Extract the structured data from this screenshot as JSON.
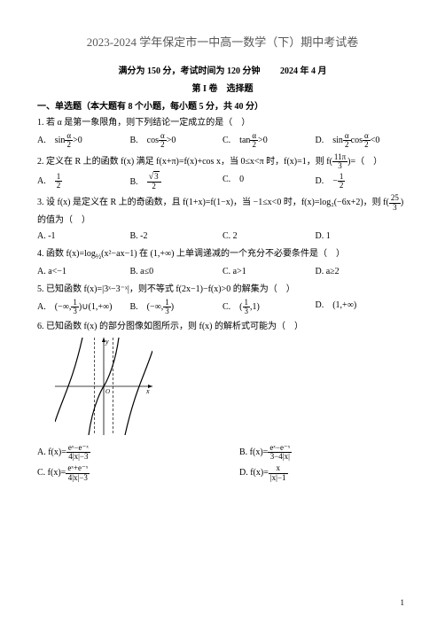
{
  "title": "2023-2024 学年保定市一中高一数学（下）期中考试卷",
  "sub_left": "满分为 150 分，考试时间为 120 分钟",
  "sub_right": "2024 年 4 月",
  "section": "第 I 卷　选择题",
  "heading": "一、单选题（本大题有 8 个小题，每小题 5 分，共 40 分）",
  "q1": "1. 若 α 是第一象限角，则下列结论一定成立的是（　）",
  "q1A": "A.　sin",
  "q1B": "B.　cos",
  "q1C": "C.　tan",
  "q1D": "D.　sin",
  "q1Dcos": "cos",
  "alpha": "α",
  "two": "2",
  "gt0": ">0",
  "lt0": "<0",
  "q2": "2. 定义在 R 上的函数 f(x) 满足 f(x+π)=f(x)+cos x，当 0≤x<π 时，f(x)=1，则 f",
  "q2tail": "=（　）",
  "elevenPi": "11π",
  "three": "3",
  "q2A": "A.　",
  "q2B": "B.　",
  "q2C": "C.　0",
  "q2D": "D.　−",
  "half_num": "1",
  "half_den": "2",
  "sqrt3": "3",
  "q3a": "3. 设 f(x) 是定义在 R 上的奇函数，且 f(1+x)=f(1−x)，当 −1≤x<0 时，f(x)=log₂(−6x+2)，则 f",
  "q3b": "的值为（　）",
  "twentyfive": "25",
  "q3A": "A. -1",
  "q3B": "B. -2",
  "q3C": "C. 2",
  "q3D": "D. 1",
  "q4": "4. 函数 f(x)=log",
  "q4sub": "½",
  "q4body": "(x²−ax−1) 在 (1,+∞) 上单调递减的一个充分不必要条件是（　）",
  "q4A": "A. a<−1",
  "q4B": "B. a≤0",
  "q4C": "C. a>1",
  "q4D": "D. a≥2",
  "q5": "5. 已知函数 f(x)=|3ˣ−3⁻ˣ|，则不等式 f(2x−1)−f(x)>0 的解集为（　）",
  "q5A_l": "A.　",
  "q5A_body": "−∞,",
  "q5A_union": "∪(1,+∞)",
  "q5B_l": "B.　",
  "q5B_body": "−∞,",
  "q5C_l": "C.　",
  "q5C_body": ",1",
  "q5D": "D.　(1,+∞)",
  "one": "1",
  "q6": "6. 已知函数 f(x) 的部分图像如图所示，则 f(x) 的解析式可能为（　）",
  "q6A": "A. f(x)=",
  "q6Anum": "eˣ−e⁻ˣ",
  "q6Aden": "4|x|−3",
  "q6B": "B. f(x)=",
  "q6Bnum": "eˣ−e⁻ˣ",
  "q6Bden": "3−4|x|",
  "q6C": "C. f(x)=",
  "q6Cnum": "eˣ+e⁻ˣ",
  "q6Cden": "4|x|−3",
  "q6D": "D. f(x)=",
  "q6Dnum": "x",
  "q6Dden": "|x|−1",
  "pagenum": "1",
  "graph": {
    "type": "function-plot",
    "width": 110,
    "height": 110,
    "bg": "#ffffff",
    "axis_color": "#000000",
    "curve_color": "#000000",
    "asymptote_color": "#000000",
    "x_range": [
      -4,
      4
    ],
    "y_range": [
      -4,
      4
    ],
    "vertical_asymptotes": [
      -0.75,
      0.75
    ],
    "dash": "3,2",
    "line_width": 1.2,
    "branches": [
      "M -55 40 C -45 10 -35 -6 -24 -55",
      "M -17 55 C -12 18 0 0.001 0 0 C 0 -0.001 12 -18 17 -55",
      "M 24 55 C 35 6 45 -10 55 -40"
    ],
    "y_label": "y",
    "x_label": "x",
    "origin": "O"
  }
}
